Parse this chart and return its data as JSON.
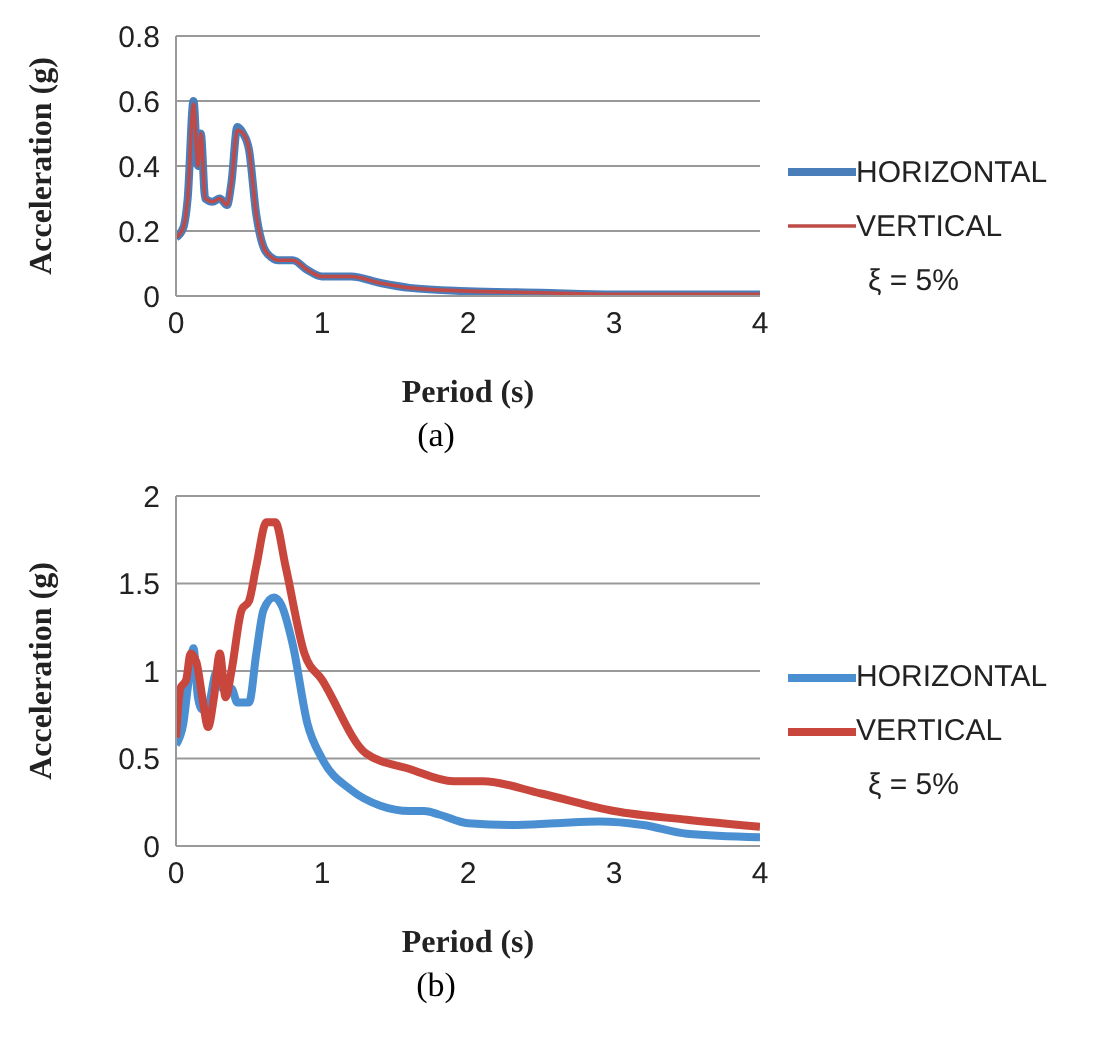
{
  "chart_data": [
    {
      "type": "line",
      "xlabel": "Period (s)",
      "ylabel": "Acceleration (g)",
      "xlim": [
        0,
        4
      ],
      "xticks": [
        0,
        1,
        2,
        3,
        4
      ],
      "ylim": [
        0,
        0.8
      ],
      "yticks": [
        0,
        0.2,
        0.4,
        0.6,
        0.8
      ],
      "grid": "y",
      "legend": "right",
      "annotations": [
        "ξ = 5%",
        "(a)"
      ],
      "series": [
        {
          "name": "HORIZONTAL",
          "color": "#4a7ebb",
          "x": [
            0,
            0.05,
            0.08,
            0.12,
            0.15,
            0.17,
            0.2,
            0.25,
            0.3,
            0.35,
            0.38,
            0.42,
            0.46,
            0.5,
            0.55,
            0.6,
            0.65,
            0.7,
            0.8,
            0.9,
            1.0,
            1.2,
            1.4,
            1.6,
            2,
            2.5,
            3,
            4
          ],
          "values": [
            0.18,
            0.21,
            0.3,
            0.6,
            0.4,
            0.5,
            0.3,
            0.29,
            0.3,
            0.28,
            0.35,
            0.52,
            0.5,
            0.45,
            0.25,
            0.15,
            0.12,
            0.11,
            0.11,
            0.08,
            0.06,
            0.06,
            0.04,
            0.025,
            0.015,
            0.01,
            0.005,
            0.005
          ]
        },
        {
          "name": "VERTICAL",
          "color": "#be4b48",
          "x": [
            0,
            0.05,
            0.08,
            0.12,
            0.15,
            0.17,
            0.2,
            0.25,
            0.3,
            0.35,
            0.38,
            0.42,
            0.46,
            0.5,
            0.55,
            0.6,
            0.65,
            0.7,
            0.8,
            0.9,
            1.0,
            1.2,
            1.4,
            1.6,
            2,
            2.5,
            3,
            4
          ],
          "values": [
            0.18,
            0.21,
            0.3,
            0.59,
            0.4,
            0.5,
            0.3,
            0.29,
            0.3,
            0.28,
            0.35,
            0.51,
            0.5,
            0.45,
            0.25,
            0.15,
            0.12,
            0.11,
            0.11,
            0.08,
            0.06,
            0.06,
            0.04,
            0.025,
            0.015,
            0.01,
            0.005,
            0.005
          ]
        }
      ]
    },
    {
      "type": "line",
      "xlabel": "Period (s)",
      "ylabel": "Acceleration (g)",
      "xlim": [
        0,
        4
      ],
      "xticks": [
        0,
        1,
        2,
        3,
        4
      ],
      "ylim": [
        0,
        2
      ],
      "yticks": [
        0,
        0.5,
        1,
        1.5,
        2
      ],
      "grid": "y",
      "legend": "right",
      "annotations": [
        "ξ = 5%",
        "(b)"
      ],
      "series": [
        {
          "name": "HORIZONTAL",
          "color": "#4a8fd1",
          "x": [
            0,
            0.05,
            0.08,
            0.12,
            0.15,
            0.18,
            0.22,
            0.28,
            0.32,
            0.38,
            0.42,
            0.5,
            0.55,
            0.6,
            0.67,
            0.72,
            0.8,
            0.9,
            1.0,
            1.2,
            1.4,
            1.6,
            1.7,
            1.8,
            2.0,
            2.3,
            2.6,
            2.9,
            3.2,
            3.5,
            4
          ],
          "values": [
            0.58,
            0.7,
            0.9,
            1.13,
            0.85,
            0.78,
            0.8,
            1.0,
            0.9,
            0.9,
            0.82,
            0.82,
            1.1,
            1.35,
            1.42,
            1.38,
            1.15,
            0.7,
            0.5,
            0.32,
            0.23,
            0.2,
            0.2,
            0.18,
            0.13,
            0.12,
            0.13,
            0.14,
            0.12,
            0.07,
            0.05
          ]
        },
        {
          "name": "VERTICAL",
          "color": "#c9463d",
          "x": [
            0,
            0.03,
            0.07,
            0.1,
            0.14,
            0.18,
            0.22,
            0.26,
            0.3,
            0.34,
            0.38,
            0.45,
            0.5,
            0.55,
            0.62,
            0.68,
            0.75,
            0.88,
            1.0,
            1.3,
            1.6,
            1.9,
            2.1,
            2.5,
            3.0,
            3.5,
            4
          ],
          "values": [
            0.62,
            0.9,
            0.95,
            1.1,
            1.05,
            0.85,
            0.68,
            0.85,
            1.1,
            0.85,
            1.0,
            1.35,
            1.4,
            1.6,
            1.85,
            1.85,
            1.6,
            1.1,
            0.95,
            0.53,
            0.44,
            0.37,
            0.37,
            0.3,
            0.2,
            0.15,
            0.11
          ]
        }
      ]
    }
  ]
}
